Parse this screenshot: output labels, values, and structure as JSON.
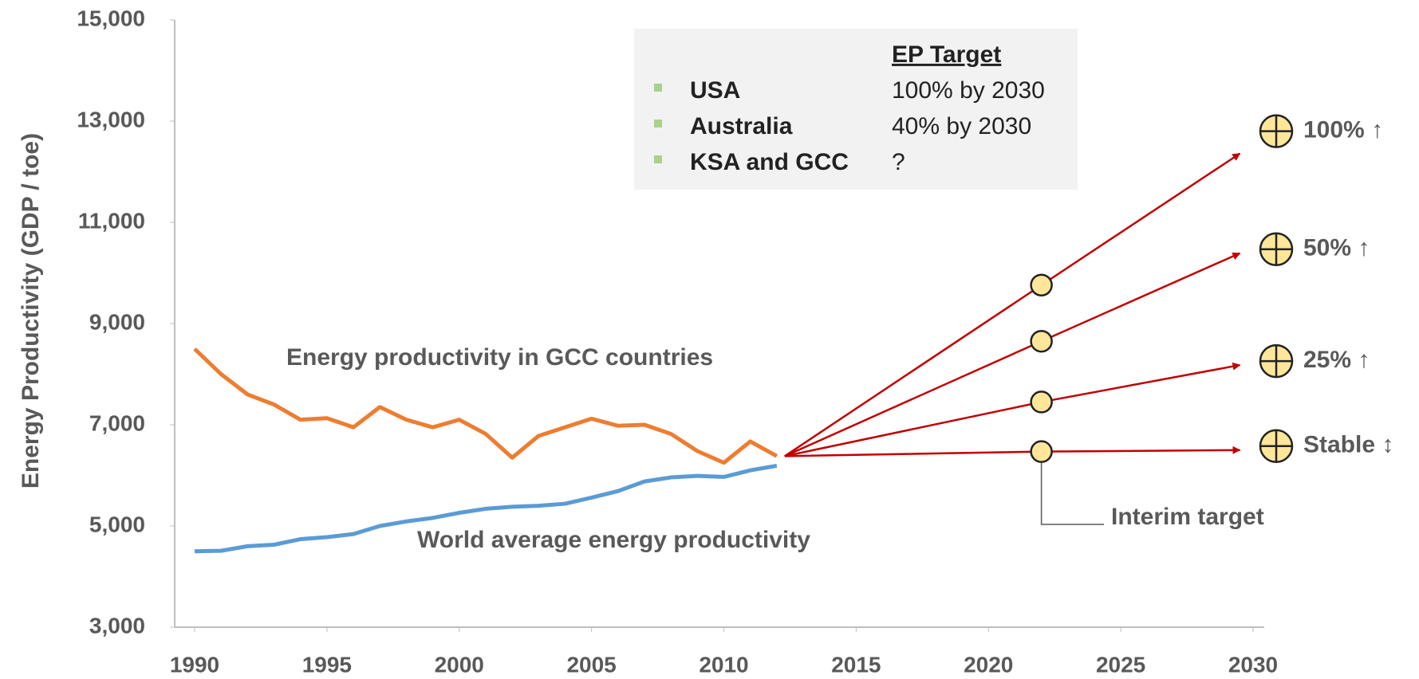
{
  "chart_data": {
    "type": "line",
    "y_label": "Energy Productivity (GDP / toe)",
    "x": [
      1990,
      1991,
      1992,
      1993,
      1994,
      1995,
      1996,
      1997,
      1998,
      1999,
      2000,
      2001,
      2002,
      2003,
      2004,
      2005,
      2006,
      2007,
      2008,
      2009,
      2010,
      2011,
      2012
    ],
    "series": [
      {
        "name": "Energy productivity in GCC countries",
        "color": "#ed7d31",
        "values": [
          8500,
          8000,
          7600,
          7400,
          7100,
          7130,
          6950,
          7350,
          7100,
          6950,
          7100,
          6820,
          6350,
          6780,
          6950,
          7120,
          6980,
          7000,
          6820,
          6480,
          6250,
          6670,
          6380
        ]
      },
      {
        "name": "World average energy productivity",
        "color": "#5b9bd5",
        "values": [
          4500,
          4510,
          4600,
          4630,
          4740,
          4780,
          4840,
          5000,
          5090,
          5160,
          5260,
          5340,
          5380,
          5400,
          5440,
          5560,
          5690,
          5880,
          5960,
          5990,
          5970,
          6100,
          6190
        ]
      }
    ],
    "projection_x": [
      2012.3,
      2022,
      2029.5
    ],
    "projections": [
      {
        "label": "100% ↑",
        "values": [
          6380,
          9760,
          12360
        ]
      },
      {
        "label": "50% ↑",
        "values": [
          6380,
          8650,
          10390
        ]
      },
      {
        "label": "25% ↑",
        "values": [
          6380,
          7450,
          8180
        ]
      },
      {
        "label": "Stable ↕",
        "values": [
          6380,
          6470,
          6500
        ]
      }
    ],
    "projection_color": "#c00000",
    "interim_label": "Interim target",
    "xlim": [
      1990,
      2030
    ],
    "xticks": [
      1990,
      1995,
      2000,
      2005,
      2010,
      2015,
      2020,
      2025,
      2030
    ],
    "ylim": [
      3000,
      15000
    ],
    "yticks": [
      {
        "value": 3000,
        "label": "3,000"
      },
      {
        "value": 5000,
        "label": "5,000"
      },
      {
        "value": 7000,
        "label": "7,000"
      },
      {
        "value": 9000,
        "label": "9,000"
      },
      {
        "value": 11000,
        "label": "11,000"
      },
      {
        "value": 13000,
        "label": "13,000"
      },
      {
        "value": 15000,
        "label": "15,000"
      }
    ],
    "legend_table": {
      "header": "EP Target",
      "rows": [
        [
          "USA",
          "100% by 2030"
        ],
        [
          "Australia",
          "40% by 2030"
        ],
        [
          "KSA and GCC",
          "?"
        ]
      ]
    }
  }
}
